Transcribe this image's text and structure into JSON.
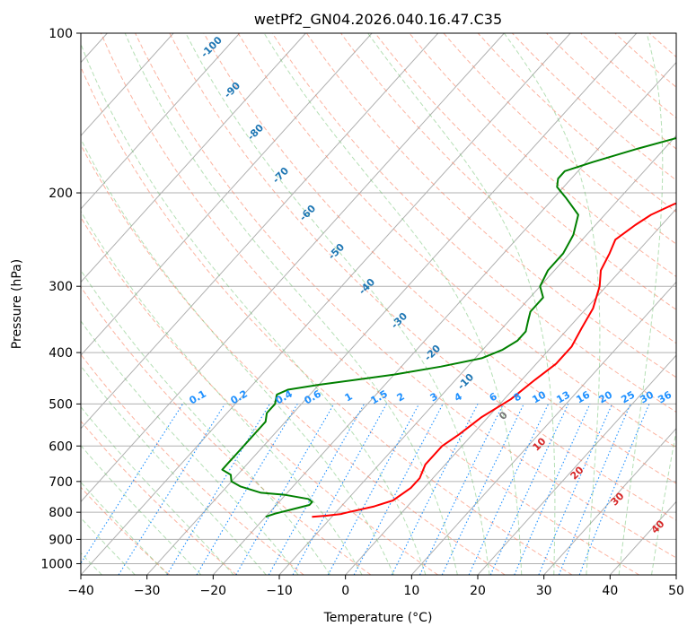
{
  "chart_data": {
    "type": "line",
    "title": "wetPf2_GN04.2026.040.16.47.C35",
    "xlabel": "Temperature (°C)",
    "ylabel": "Pressure (hPa)",
    "xlim": [
      -40,
      50
    ],
    "ylim": [
      1050,
      100
    ],
    "y_scale": "log",
    "x_ticks": [
      -40,
      -30,
      -20,
      -10,
      0,
      10,
      20,
      30,
      40,
      50
    ],
    "x_tick_labels": [
      "−40",
      "−30",
      "−20",
      "−10",
      "0",
      "10",
      "20",
      "30",
      "40",
      "50"
    ],
    "y_ticks": [
      100,
      200,
      300,
      400,
      500,
      600,
      700,
      800,
      900,
      1000
    ],
    "y_tick_labels": [
      "100",
      "200",
      "300",
      "400",
      "500",
      "600",
      "700",
      "800",
      "900",
      "1000"
    ],
    "grid": true,
    "skew": true,
    "series": [
      {
        "color": "#ff0000",
        "points": [
          [
            816,
            -13
          ],
          [
            812,
            -11
          ],
          [
            806,
            -9
          ],
          [
            799,
            -8
          ],
          [
            780,
            -5
          ],
          [
            760,
            -3
          ],
          [
            720,
            -2
          ],
          [
            690,
            -2
          ],
          [
            650,
            -3
          ],
          [
            600,
            -3
          ],
          [
            570,
            -2
          ],
          [
            530,
            -1
          ],
          [
            490,
            1
          ],
          [
            450,
            2
          ],
          [
            420,
            3
          ],
          [
            390,
            3
          ],
          [
            360,
            2
          ],
          [
            330,
            1
          ],
          [
            300,
            -1
          ],
          [
            280,
            -3
          ],
          [
            260,
            -4
          ],
          [
            245,
            -5
          ],
          [
            230,
            -4
          ],
          [
            220,
            -3
          ],
          [
            210,
            -1
          ],
          [
            200,
            3
          ],
          [
            190,
            7
          ],
          [
            175,
            11
          ],
          [
            160,
            14
          ],
          [
            145,
            17
          ],
          [
            130,
            21
          ],
          [
            115,
            26
          ],
          [
            105,
            31
          ],
          [
            100,
            34
          ]
        ]
      },
      {
        "color": "#008000",
        "points": [
          [
            816,
            -20
          ],
          [
            805,
            -19
          ],
          [
            790,
            -17
          ],
          [
            775,
            -15
          ],
          [
            765,
            -15
          ],
          [
            755,
            -16
          ],
          [
            742,
            -20
          ],
          [
            735,
            -24
          ],
          [
            715,
            -28
          ],
          [
            700,
            -30
          ],
          [
            680,
            -31
          ],
          [
            665,
            -33
          ],
          [
            650,
            -33
          ],
          [
            630,
            -33
          ],
          [
            610,
            -33
          ],
          [
            590,
            -33
          ],
          [
            560,
            -33
          ],
          [
            540,
            -33
          ],
          [
            520,
            -34
          ],
          [
            500,
            -34
          ],
          [
            480,
            -35
          ],
          [
            470,
            -34
          ],
          [
            460,
            -30
          ],
          [
            450,
            -25
          ],
          [
            440,
            -20
          ],
          [
            425,
            -14
          ],
          [
            410,
            -9
          ],
          [
            395,
            -7
          ],
          [
            380,
            -6
          ],
          [
            365,
            -6
          ],
          [
            350,
            -7
          ],
          [
            335,
            -8
          ],
          [
            315,
            -8
          ],
          [
            300,
            -10
          ],
          [
            280,
            -11
          ],
          [
            260,
            -11
          ],
          [
            240,
            -12
          ],
          [
            220,
            -14
          ],
          [
            205,
            -18
          ],
          [
            195,
            -21
          ],
          [
            188,
            -22
          ],
          [
            182,
            -22
          ],
          [
            175,
            -19
          ],
          [
            165,
            -14
          ],
          [
            155,
            -8
          ],
          [
            145,
            -5
          ],
          [
            135,
            -2
          ],
          [
            120,
            1
          ],
          [
            108,
            3
          ],
          [
            100,
            4
          ]
        ]
      }
    ],
    "dry_adiabat_labels": [
      "-100",
      "-90",
      "-80",
      "-70",
      "-60",
      "-50",
      "-40",
      "-30",
      "-20",
      "-10"
    ],
    "moist_adiabat_labels": [
      "0",
      "10",
      "20",
      "30",
      "40"
    ],
    "mixing_ratio_labels": [
      "0.1",
      "0.2",
      "0.4",
      "0.6",
      "1",
      "1.5",
      "2",
      "3",
      "4",
      "6",
      "8",
      "10",
      "13",
      "16",
      "20",
      "25",
      "30",
      "36"
    ],
    "mixing_ratio_values": [
      0.1,
      0.2,
      0.4,
      0.6,
      1,
      1.5,
      2,
      3,
      4,
      6,
      8,
      10,
      13,
      16,
      20,
      25,
      30,
      36
    ]
  }
}
